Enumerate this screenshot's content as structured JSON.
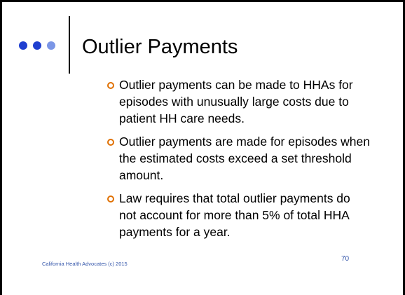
{
  "title": "Outlier Payments",
  "bullets": [
    "Outlier payments can be made to HHAs for episodes with unusually large costs due to patient HH care needs.",
    "Outlier payments are made for episodes when the estimated costs exceed a set threshold amount.",
    "Law requires that total outlier payments do not account for more than 5% of total HHA payments for a year."
  ],
  "footer": "California Health Advocates (c) 2015",
  "page_number": "70"
}
